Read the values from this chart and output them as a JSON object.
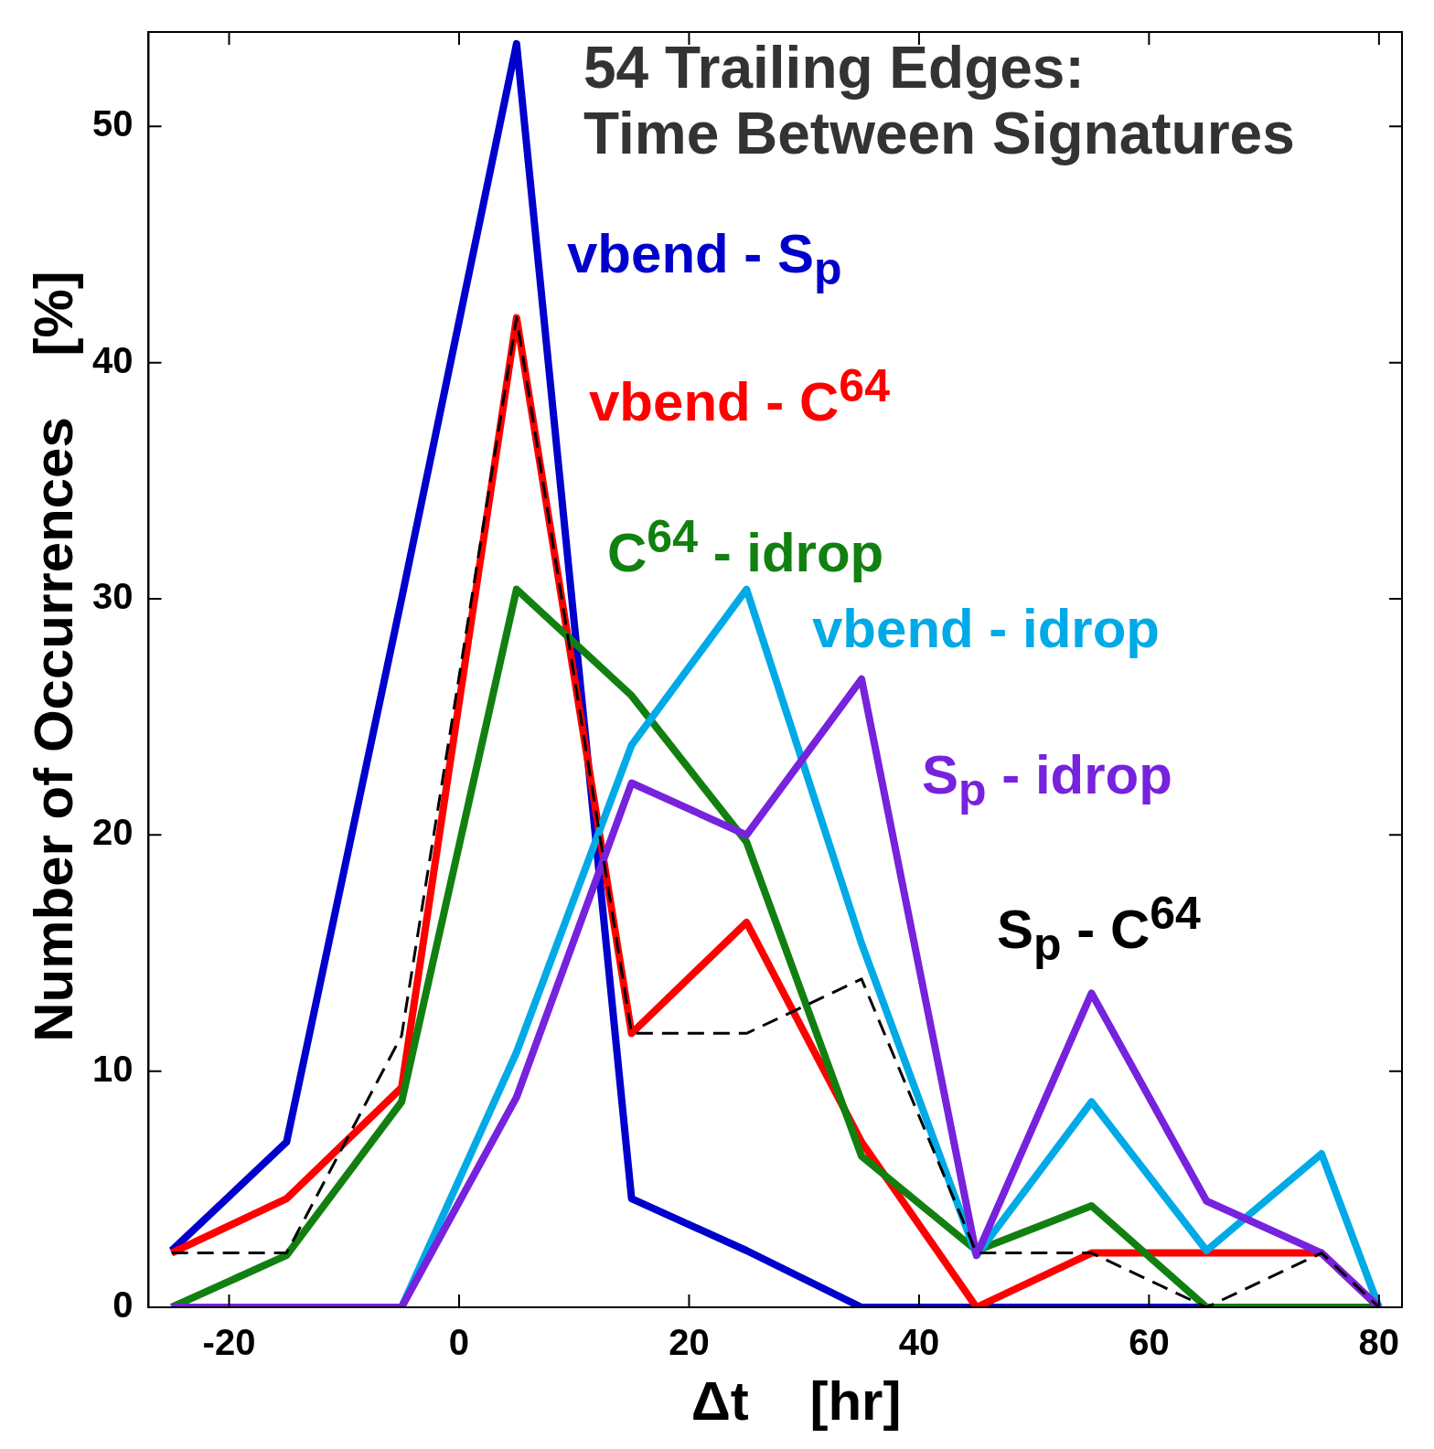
{
  "chart_data": {
    "type": "line",
    "title": "54 Trailing Edges:\nTime Between Signatures",
    "xlabel": "Δt    [hr]",
    "ylabel": "Number of Occurrences    [%]",
    "x": [
      -25,
      -15,
      -5,
      5,
      15,
      25,
      35,
      45,
      55,
      65,
      75,
      80
    ],
    "series": [
      {
        "name": "vbend - S$_{p}$",
        "color": "#0000cc",
        "values": [
          2.4,
          7.0,
          30,
          53.5,
          4.6,
          2.4,
          0,
          0,
          0,
          0,
          0,
          0
        ]
      },
      {
        "name": "vbend - C$^{64}$",
        "color": "#ff0000",
        "values": [
          2.3,
          4.6,
          9.3,
          41.9,
          11.6,
          16.3,
          7,
          0,
          2.3,
          2.3,
          2.3,
          0
        ]
      },
      {
        "name": "C$^{64}$ - idrop",
        "color": "#118011",
        "values": [
          0,
          2.2,
          8.7,
          30.4,
          25.9,
          19.7,
          6.4,
          2.4,
          4.3,
          0,
          0,
          0
        ]
      },
      {
        "name": "vbend - idrop",
        "color": "#00aae6",
        "values": [
          0,
          0,
          0,
          10.8,
          23.8,
          30.4,
          15.4,
          2.2,
          8.7,
          2.4,
          6.5,
          0
        ]
      },
      {
        "name": "S$_{p}$ - idrop",
        "color": "#7722dd",
        "values": [
          0,
          0,
          0,
          8.9,
          22.2,
          20,
          26.6,
          2.2,
          13.3,
          4.5,
          2.3,
          0
        ]
      },
      {
        "name": "S$_{p}$ - C$^{64}$",
        "color": "#000000",
        "line_style": "dashed",
        "values": [
          2.3,
          2.3,
          11.5,
          41.9,
          11.6,
          11.6,
          13.9,
          2.3,
          2.3,
          0,
          2.3,
          0
        ]
      }
    ],
    "xlim": [
      -27,
      82
    ],
    "xticks": [
      -20,
      0,
      20,
      40,
      60,
      80
    ],
    "ylim": [
      0,
      54
    ],
    "yticks": [
      0,
      10,
      20,
      30,
      40,
      50
    ],
    "grid": false,
    "legend": false,
    "marker": "none"
  }
}
